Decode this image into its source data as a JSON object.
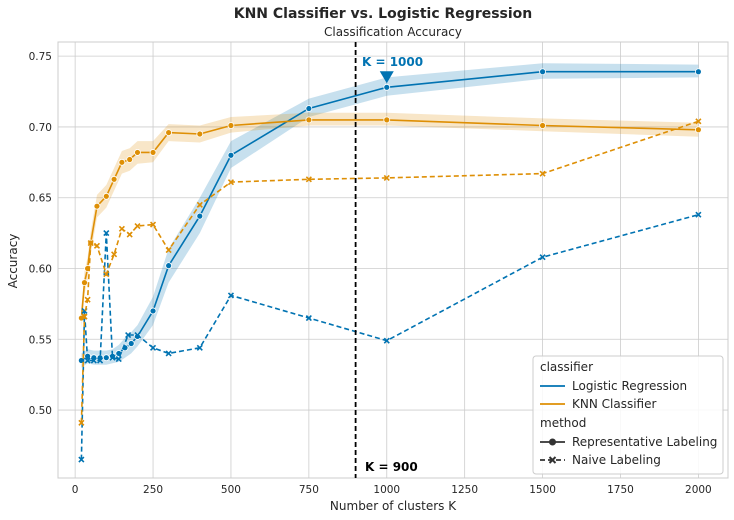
{
  "chart_data": {
    "type": "line",
    "suptitle": "KNN Classifier vs. Logistic Regression",
    "title": "Classification Accuracy",
    "xlabel": "Number of clusters K",
    "ylabel": "Accuracy",
    "xlim": [
      -55,
      2095
    ],
    "ylim": [
      0.452,
      0.76
    ],
    "xticks": [
      0,
      250,
      500,
      750,
      1000,
      1250,
      1500,
      1750,
      2000
    ],
    "yticks": [
      0.5,
      0.55,
      0.6,
      0.65,
      0.7,
      0.75
    ],
    "xtick_labels": [
      "0",
      "250",
      "500",
      "750",
      "1000",
      "1250",
      "1500",
      "1750",
      "2000"
    ],
    "ytick_labels": [
      "0.50",
      "0.55",
      "0.60",
      "0.65",
      "0.70",
      "0.75"
    ],
    "grid": true,
    "legend": {
      "placement": "lower-right",
      "title1": "classifier",
      "classifier_items": [
        "Logistic Regression",
        "KNN Classifier"
      ],
      "title2": "method",
      "method_items": [
        "Representative Labeling",
        "Naive Labeling"
      ]
    },
    "colors": {
      "logistic": "#0173b2",
      "knn": "#de8f05",
      "vline": "#000000"
    },
    "series": [
      {
        "name": "Logistic Regression",
        "classifier": "Logistic Regression",
        "method": "Representative Labeling",
        "style": "solid",
        "marker": "circle",
        "color": "#0173b2",
        "x": [
          20,
          40,
          60,
          80,
          100,
          120,
          140,
          160,
          180,
          200,
          250,
          300,
          400,
          500,
          750,
          1000,
          1500,
          2000
        ],
        "y": [
          0.535,
          0.538,
          0.537,
          0.537,
          0.537,
          0.538,
          0.54,
          0.544,
          0.547,
          0.552,
          0.57,
          0.602,
          0.637,
          0.68,
          0.713,
          0.728,
          0.739,
          0.739
        ],
        "band_lower": [
          0.53,
          0.533,
          0.532,
          0.532,
          0.532,
          0.533,
          0.534,
          0.537,
          0.54,
          0.545,
          0.56,
          0.59,
          0.625,
          0.671,
          0.707,
          0.722,
          0.734,
          0.735
        ],
        "band_upper": [
          0.54,
          0.543,
          0.542,
          0.542,
          0.542,
          0.543,
          0.546,
          0.551,
          0.555,
          0.56,
          0.58,
          0.614,
          0.65,
          0.69,
          0.72,
          0.735,
          0.745,
          0.744
        ]
      },
      {
        "name": "KNN Classifier",
        "classifier": "KNN Classifier",
        "method": "Representative Labeling",
        "style": "solid",
        "marker": "circle",
        "color": "#de8f05",
        "x": [
          20,
          30,
          40,
          50,
          70,
          100,
          125,
          150,
          175,
          200,
          250,
          300,
          400,
          500,
          750,
          1000,
          1500,
          2000
        ],
        "y": [
          0.565,
          0.59,
          0.6,
          0.618,
          0.644,
          0.651,
          0.663,
          0.675,
          0.677,
          0.682,
          0.682,
          0.696,
          0.695,
          0.701,
          0.705,
          0.705,
          0.701,
          0.698
        ],
        "band_lower": [
          0.558,
          0.582,
          0.592,
          0.61,
          0.636,
          0.643,
          0.655,
          0.667,
          0.669,
          0.674,
          0.675,
          0.69,
          0.689,
          0.696,
          0.701,
          0.701,
          0.697,
          0.693
        ],
        "band_upper": [
          0.572,
          0.598,
          0.608,
          0.626,
          0.652,
          0.659,
          0.671,
          0.683,
          0.685,
          0.69,
          0.69,
          0.702,
          0.701,
          0.707,
          0.71,
          0.71,
          0.706,
          0.703
        ]
      },
      {
        "name": "Logistic Regression",
        "classifier": "Logistic Regression",
        "method": "Naive Labeling",
        "style": "dashed",
        "marker": "x",
        "color": "#0173b2",
        "x": [
          20,
          30,
          40,
          60,
          80,
          100,
          120,
          140,
          170,
          200,
          250,
          300,
          400,
          500,
          750,
          1000,
          1500,
          2000
        ],
        "y": [
          0.465,
          0.57,
          0.535,
          0.535,
          0.535,
          0.625,
          0.537,
          0.536,
          0.553,
          0.553,
          0.544,
          0.54,
          0.544,
          0.581,
          0.565,
          0.549,
          0.608,
          0.638
        ]
      },
      {
        "name": "KNN Classifier",
        "classifier": "KNN Classifier",
        "method": "Naive Labeling",
        "style": "dashed",
        "marker": "x",
        "color": "#de8f05",
        "x": [
          20,
          30,
          40,
          50,
          70,
          100,
          125,
          150,
          175,
          200,
          250,
          300,
          400,
          500,
          750,
          1000,
          1500,
          2000
        ],
        "y": [
          0.491,
          0.566,
          0.578,
          0.618,
          0.616,
          0.596,
          0.61,
          0.628,
          0.624,
          0.63,
          0.631,
          0.613,
          0.645,
          0.661,
          0.663,
          0.664,
          0.667,
          0.704
        ]
      }
    ],
    "vline": {
      "x": 900,
      "label": "K = 900"
    },
    "annotation": {
      "x": 1000,
      "y": 0.728,
      "label": "K = 1000",
      "color": "#0173b2"
    }
  }
}
